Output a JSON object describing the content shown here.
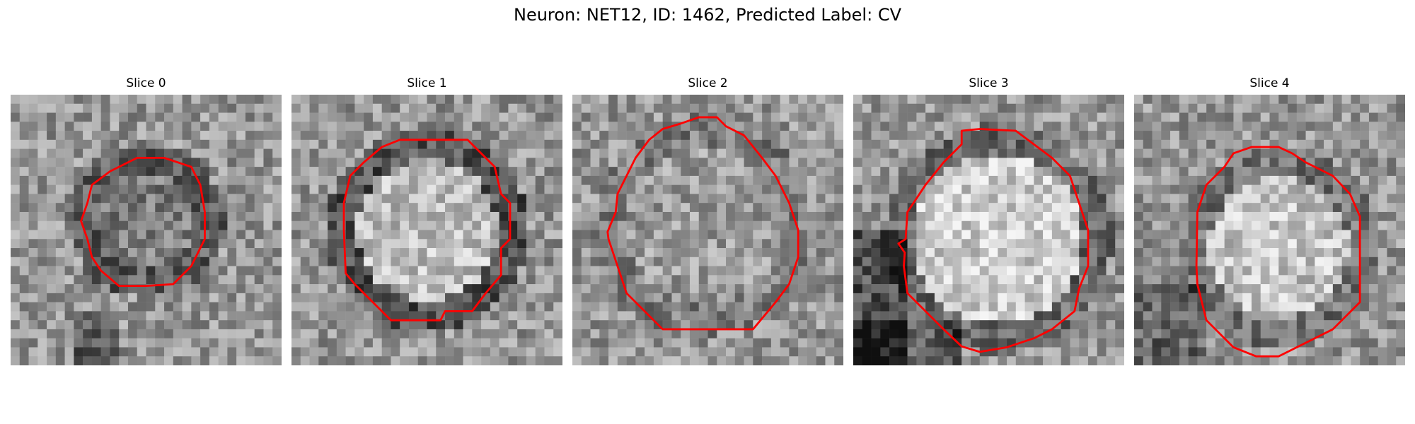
{
  "figure": {
    "title": "Neuron: NET12, ID: 1462, Predicted Label: CV"
  },
  "contour_color": "#ff0000",
  "slices": [
    {
      "label": "Slice 0"
    },
    {
      "label": "Slice 1"
    },
    {
      "label": "Slice 2"
    },
    {
      "label": "Slice 3"
    },
    {
      "label": "Slice 4"
    }
  ]
}
